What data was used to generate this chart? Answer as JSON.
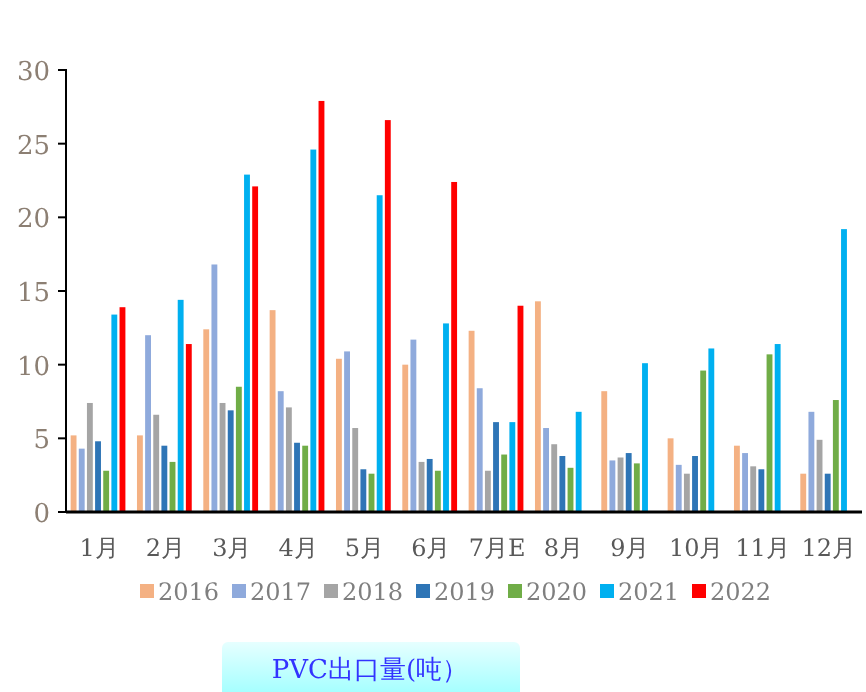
{
  "chart_data": {
    "type": "bar",
    "title": "PVC出口量(吨）",
    "categories": [
      "1月",
      "2月",
      "3月",
      "4月",
      "5月",
      "6月",
      "7月E",
      "8月",
      "9月",
      "10月",
      "11月",
      "12月"
    ],
    "series": [
      {
        "name": "2016",
        "color": "#f4b183",
        "values": [
          5.2,
          5.2,
          12.4,
          13.7,
          10.4,
          10.0,
          12.3,
          14.3,
          8.2,
          5.0,
          4.5,
          2.6
        ]
      },
      {
        "name": "2017",
        "color": "#8faadc",
        "values": [
          4.3,
          12.0,
          16.8,
          8.2,
          10.9,
          11.7,
          8.4,
          5.7,
          3.5,
          3.2,
          4.0,
          6.8
        ]
      },
      {
        "name": "2018",
        "color": "#a5a5a5",
        "values": [
          7.4,
          6.6,
          7.4,
          7.1,
          5.7,
          3.4,
          2.8,
          4.6,
          3.7,
          2.6,
          3.1,
          4.9
        ]
      },
      {
        "name": "2019",
        "color": "#2e75b6",
        "values": [
          4.8,
          4.5,
          6.9,
          4.7,
          2.9,
          3.6,
          6.1,
          3.8,
          4.0,
          3.8,
          2.9,
          2.6
        ]
      },
      {
        "name": "2020",
        "color": "#70ad47",
        "values": [
          2.8,
          3.4,
          8.5,
          4.5,
          2.6,
          2.8,
          3.9,
          3.0,
          3.3,
          9.6,
          10.7,
          7.6
        ]
      },
      {
        "name": "2021",
        "color": "#00b0f0",
        "values": [
          13.4,
          14.4,
          22.9,
          24.6,
          21.5,
          12.8,
          6.1,
          6.8,
          10.1,
          11.1,
          11.4,
          19.2
        ]
      },
      {
        "name": "2022",
        "color": "#ff0000",
        "values": [
          13.9,
          11.4,
          22.1,
          27.9,
          26.6,
          22.4,
          14.0,
          null,
          null,
          null,
          null,
          null
        ]
      }
    ],
    "ylim": [
      0,
      30
    ],
    "yticks": [
      0,
      5,
      10,
      15,
      20,
      25,
      30
    ],
    "grid": false,
    "legend": "bottom"
  }
}
